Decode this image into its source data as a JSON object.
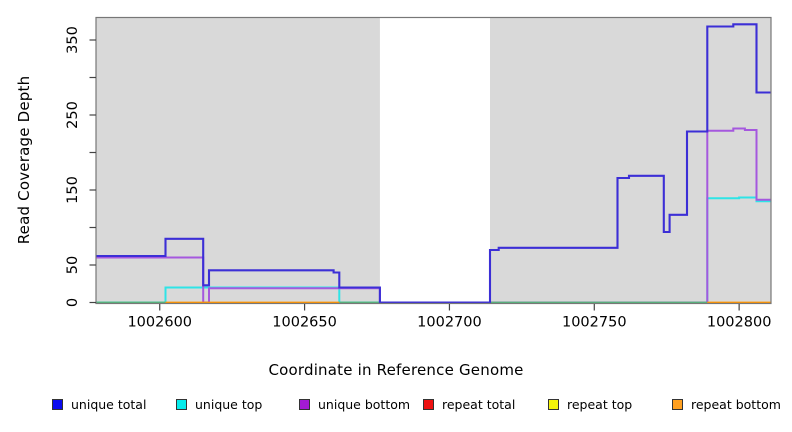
{
  "chart_data": {
    "type": "line",
    "subtype": "step",
    "title": "",
    "xlabel": "Coordinate in Reference Genome",
    "ylabel": "Read Coverage Depth",
    "x_range": [
      1002578,
      1002811
    ],
    "y_range": [
      0,
      380
    ],
    "x_ticks": {
      "labeled": [
        1002600,
        1002650,
        1002700,
        1002750,
        1002800
      ]
    },
    "y_ticks": {
      "labeled": [
        0,
        50,
        150,
        250,
        350
      ],
      "unlabeled": [
        100,
        200,
        300
      ]
    },
    "grid": false,
    "plot_background": "#d9d9d9",
    "border_color": "#777777",
    "masked_region": {
      "x_start": 1002676,
      "x_end": 1002714,
      "color": "#ffffff"
    },
    "baseline_segments": [
      {
        "name": "baseline-green-1",
        "color": "#55b57a",
        "from": 1002578,
        "to": 1002602
      },
      {
        "name": "baseline-green-2",
        "color": "#55b57a",
        "from": 1002662,
        "to": 1002676
      },
      {
        "name": "baseline-green-3",
        "color": "#55b57a",
        "from": 1002714,
        "to": 1002789
      },
      {
        "name": "baseline-orange-1",
        "color": "#ff9400",
        "from": 1002602,
        "to": 1002662
      },
      {
        "name": "baseline-orange-2",
        "color": "#ff9400",
        "from": 1002789,
        "to": 1002811
      }
    ],
    "series": [
      {
        "name": "unique top",
        "color": "#2ee4e6",
        "hidden": false,
        "steps": [
          [
            1002578,
            0
          ],
          [
            1002602,
            20
          ],
          [
            1002662,
            0
          ],
          [
            1002789,
            139
          ],
          [
            1002800,
            140
          ],
          [
            1002806,
            135
          ]
        ]
      },
      {
        "name": "unique bottom",
        "color": "#a558de",
        "hidden": false,
        "steps": [
          [
            1002578,
            60
          ],
          [
            1002615,
            0
          ],
          [
            1002617,
            19
          ],
          [
            1002676,
            0
          ],
          [
            1002789,
            229
          ],
          [
            1002798,
            232
          ],
          [
            1002802,
            230
          ],
          [
            1002806,
            137
          ]
        ]
      },
      {
        "name": "repeat total",
        "color": "#ee1111",
        "hidden": true,
        "steps": [
          [
            1002578,
            0
          ]
        ]
      },
      {
        "name": "repeat top",
        "color": "#f5f50a",
        "hidden": true,
        "steps": [
          [
            1002578,
            0
          ]
        ]
      },
      {
        "name": "repeat bottom",
        "color": "#ff9400",
        "hidden": true,
        "steps": [
          [
            1002578,
            0
          ]
        ]
      },
      {
        "name": "unique total",
        "color": "#3c2fd6",
        "hidden": false,
        "steps": [
          [
            1002578,
            62
          ],
          [
            1002602,
            85
          ],
          [
            1002615,
            23
          ],
          [
            1002617,
            43
          ],
          [
            1002660,
            40
          ],
          [
            1002662,
            20
          ],
          [
            1002676,
            0
          ],
          [
            1002714,
            70
          ],
          [
            1002717,
            73
          ],
          [
            1002758,
            166
          ],
          [
            1002762,
            169
          ],
          [
            1002774,
            94
          ],
          [
            1002776,
            117
          ],
          [
            1002782,
            228
          ],
          [
            1002789,
            368
          ],
          [
            1002798,
            371
          ],
          [
            1002806,
            280
          ]
        ]
      }
    ]
  },
  "legend": {
    "items": [
      {
        "label": "unique total",
        "color": "#0b0bee"
      },
      {
        "label": "unique top",
        "color": "#06ecec"
      },
      {
        "label": "unique bottom",
        "color": "#a31ad4"
      },
      {
        "label": "repeat total",
        "color": "#ee1111"
      },
      {
        "label": "repeat top",
        "color": "#f5f50a"
      },
      {
        "label": "repeat bottom",
        "color": "#ffa020"
      }
    ]
  }
}
